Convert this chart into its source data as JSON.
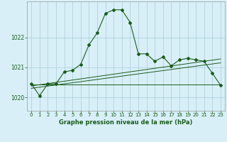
{
  "title": "Graphe pression niveau de la mer (hPa)",
  "bg_color": "#d8eff8",
  "grid_color": "#aaccd8",
  "line_color": "#1a5c1a",
  "xlim": [
    -0.5,
    23.5
  ],
  "ylim": [
    1019.55,
    1023.2
  ],
  "yticks": [
    1020,
    1021,
    1022
  ],
  "xticks": [
    0,
    1,
    2,
    3,
    4,
    5,
    6,
    7,
    8,
    9,
    10,
    11,
    12,
    13,
    14,
    15,
    16,
    17,
    18,
    19,
    20,
    21,
    22,
    23
  ],
  "series1_x": [
    0,
    1,
    2,
    3,
    4,
    5,
    6,
    7,
    8,
    9,
    10,
    11,
    12,
    13,
    14,
    15,
    16,
    17,
    18,
    19,
    20,
    21,
    22,
    23
  ],
  "series1_y": [
    1020.45,
    1020.05,
    1020.45,
    1020.45,
    1020.85,
    1020.9,
    1021.1,
    1021.75,
    1022.15,
    1022.8,
    1022.92,
    1022.92,
    1022.5,
    1021.45,
    1021.45,
    1021.2,
    1021.35,
    1021.05,
    1021.25,
    1021.3,
    1021.25,
    1021.2,
    1020.8,
    1020.4
  ],
  "series2_x": [
    0,
    23
  ],
  "series2_y": [
    1020.3,
    1021.15
  ],
  "series3_x": [
    0,
    23
  ],
  "series3_y": [
    1020.38,
    1021.28
  ],
  "series4_x": [
    0,
    23
  ],
  "series4_y": [
    1020.42,
    1020.42
  ]
}
